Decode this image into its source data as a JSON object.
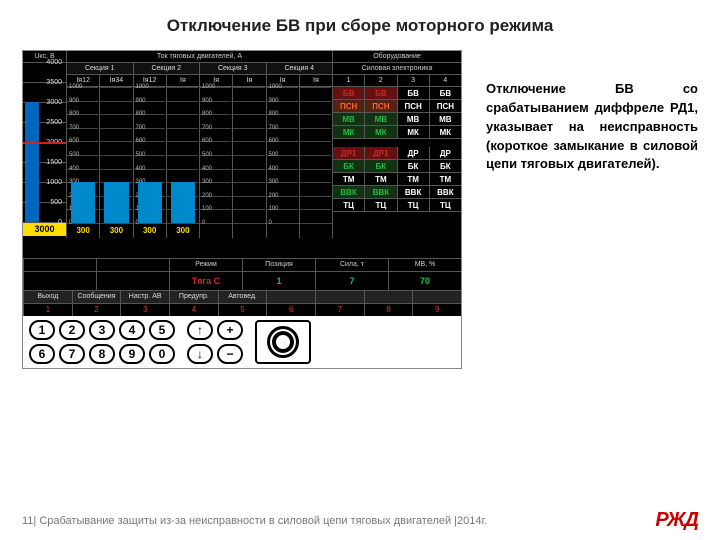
{
  "title": "Отключение БВ при сборе моторного режима",
  "right_paragraph": "Отключение БВ со срабатыванием диффреле РД1, указывает на неисправность (короткое замыкание в силовой цепи тяговых двигателей).",
  "panel": {
    "gauge": {
      "label": "Uкс, В",
      "ticks": [
        4000,
        3500,
        3000,
        2500,
        2000,
        1500,
        1000,
        500,
        0
      ],
      "min": 0,
      "max": 4000,
      "value": 3000,
      "marker_value": 2000,
      "readout": "3000",
      "bar_color": "#0066bb",
      "marker_color": "#cc2222",
      "readout_bg": "#ffdd00"
    },
    "currents": {
      "title": "Ток тяговых двигателей, А",
      "sections": [
        {
          "name": "Секция 1",
          "subs": [
            "Iя12",
            "Iя34"
          ]
        },
        {
          "name": "Секция 2",
          "subs": [
            "Iя12",
            "Iя"
          ]
        },
        {
          "name": "Секция 3",
          "subs": [
            "Iя",
            "Iя"
          ]
        },
        {
          "name": "Секция 4",
          "subs": [
            "Iя",
            "Iя"
          ]
        }
      ],
      "ticks": [
        1000,
        900,
        800,
        700,
        600,
        500,
        400,
        300,
        200,
        100,
        0
      ],
      "min": 0,
      "max": 1000,
      "values": [
        300,
        300,
        300,
        300,
        0,
        0,
        0,
        0
      ],
      "readouts": [
        "300",
        "300",
        "300",
        "300",
        "",
        "",
        "",
        ""
      ],
      "fill_color": "#0088cc",
      "readout_color": "#ffdd00"
    },
    "equip": {
      "title": "Оборудование",
      "subtitle": "Силовая электроника",
      "col_headers": [
        "1",
        "2",
        "3",
        "4"
      ],
      "group1": [
        {
          "labels": [
            "БВ",
            "БВ",
            "БВ",
            "БВ"
          ],
          "colors": [
            "#d22222",
            "#d22222",
            "#ffffff",
            "#ffffff"
          ],
          "bgs": [
            "#661111",
            "#661111",
            "#000",
            "#000"
          ]
        },
        {
          "labels": [
            "ПСН",
            "ПСН",
            "ПСН",
            "ПСН"
          ],
          "colors": [
            "#ff6633",
            "#ff6633",
            "#ffffff",
            "#ffffff"
          ],
          "bgs": [
            "#552211",
            "#552211",
            "#000",
            "#000"
          ]
        },
        {
          "labels": [
            "МВ",
            "МВ",
            "МВ",
            "МВ"
          ],
          "colors": [
            "#22bb44",
            "#22bb44",
            "#ffffff",
            "#ffffff"
          ],
          "bgs": [
            "#113311",
            "#113311",
            "#000",
            "#000"
          ]
        },
        {
          "labels": [
            "МК",
            "МК",
            "МК",
            "МК"
          ],
          "colors": [
            "#22bb44",
            "#22bb44",
            "#ffffff",
            "#ffffff"
          ],
          "bgs": [
            "#113311",
            "#113311",
            "#000",
            "#000"
          ]
        }
      ],
      "group2": [
        {
          "labels": [
            "ДР1",
            "ДР1",
            "ДР",
            "ДР"
          ],
          "colors": [
            "#d22222",
            "#d22222",
            "#ffffff",
            "#ffffff"
          ],
          "bgs": [
            "#661111",
            "#661111",
            "#000",
            "#000"
          ]
        },
        {
          "labels": [
            "БК",
            "БК",
            "БК",
            "БК"
          ],
          "colors": [
            "#22bb44",
            "#22bb44",
            "#ffffff",
            "#ffffff"
          ],
          "bgs": [
            "#113311",
            "#113311",
            "#000",
            "#000"
          ]
        },
        {
          "labels": [
            "ТМ",
            "ТМ",
            "ТМ",
            "ТМ"
          ],
          "colors": [
            "#ffffff",
            "#ffffff",
            "#ffffff",
            "#ffffff"
          ],
          "bgs": [
            "#000",
            "#000",
            "#000",
            "#000"
          ]
        },
        {
          "labels": [
            "ВВК",
            "ВВК",
            "ВВК",
            "ВВК"
          ],
          "colors": [
            "#22bb44",
            "#22bb44",
            "#ffffff",
            "#ffffff"
          ],
          "bgs": [
            "#113311",
            "#113311",
            "#000",
            "#000"
          ]
        },
        {
          "labels": [
            "ТЦ",
            "ТЦ",
            "ТЦ",
            "ТЦ"
          ],
          "colors": [
            "#ffffff",
            "#ffffff",
            "#ffffff",
            "#ffffff"
          ],
          "bgs": [
            "#000",
            "#000",
            "#000",
            "#000"
          ]
        }
      ]
    },
    "status": {
      "headers": [
        "",
        "",
        "Режим",
        "Позиция",
        "Сила, т",
        "МВ, %"
      ],
      "values": [
        "",
        "",
        "Тяга С",
        "1",
        "7",
        "70"
      ],
      "value_colors": [
        "#fff",
        "#fff",
        "#d22",
        "#2b4",
        "#2b4",
        "#2b4"
      ]
    },
    "menu": {
      "labels": [
        "Выход",
        "Сообщения",
        "Настр. АВ",
        "Предупр.",
        "Автовед.",
        "",
        "",
        "",
        ""
      ],
      "numbers": [
        "1",
        "2",
        "3",
        "4",
        "5",
        "6",
        "7",
        "8",
        "9"
      ]
    },
    "keypad": {
      "nums": [
        "1",
        "2",
        "3",
        "4",
        "5",
        "6",
        "7",
        "8",
        "9",
        "0"
      ],
      "arrows": [
        "↑",
        "+",
        "↓",
        "−"
      ]
    }
  },
  "footer": {
    "text": "11| Срабатывание защиты из-за неисправности в силовой цепи тяговых двигателей |2014г.",
    "logo": "РЖД"
  }
}
